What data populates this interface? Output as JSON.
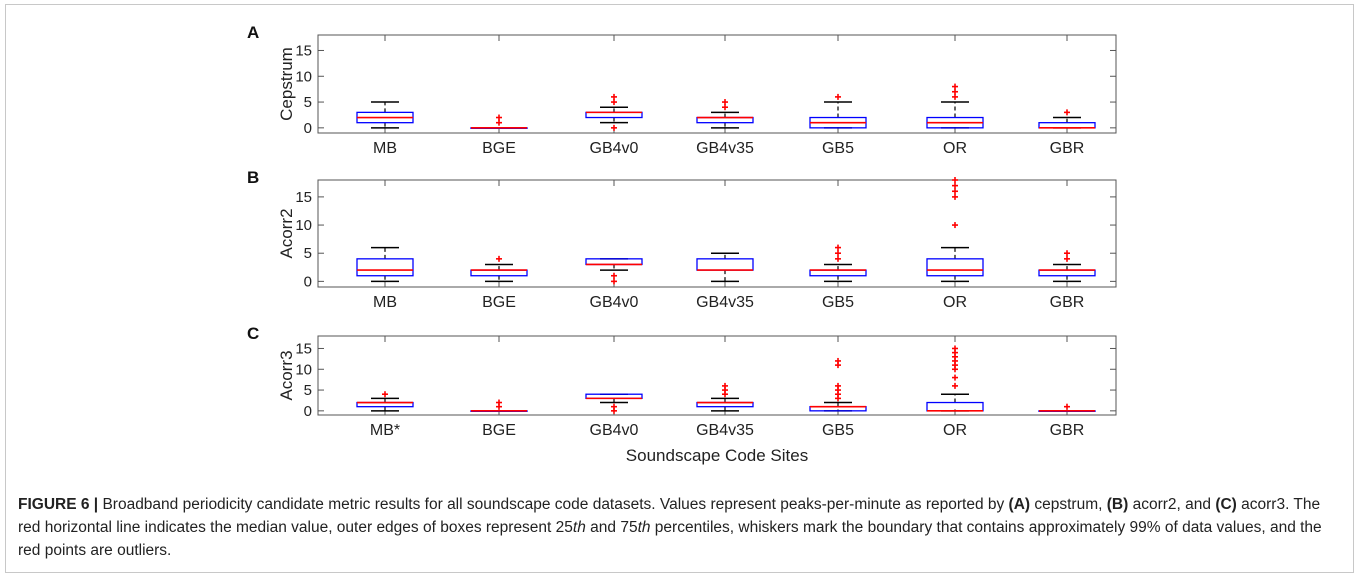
{
  "figure": {
    "xlabel": "Soundscape Code Sites"
  },
  "caption": {
    "label": "FIGURE 6 |",
    "segments": [
      {
        "t": " Broadband periodicity candidate metric results for all soundscape code datasets. Values represent peaks-per-minute as reported by ",
        "s": "n"
      },
      {
        "t": "(A)",
        "s": "b"
      },
      {
        "t": " cepstrum, ",
        "s": "n"
      },
      {
        "t": "(B)",
        "s": "b"
      },
      {
        "t": " acorr2, and ",
        "s": "n"
      },
      {
        "t": "(C)",
        "s": "b"
      },
      {
        "t": " acorr3. The red horizontal line indicates the median value, outer edges of boxes represent 25",
        "s": "n"
      },
      {
        "t": "th",
        "s": "i"
      },
      {
        "t": " and 75",
        "s": "n"
      },
      {
        "t": "th",
        "s": "i"
      },
      {
        "t": " percentiles, whiskers mark the boundary that contains approximately 99% of data values, and the red points are outliers.",
        "s": "n"
      }
    ]
  },
  "colors": {
    "box": "#0000ff",
    "median": "#ff0000",
    "whisker": "#000000",
    "outlier": "#ff0000",
    "axis": "#555555"
  },
  "chart_data": [
    {
      "type": "box",
      "panel": "A",
      "ylabel": "Cepstrum",
      "ylim": [
        -1,
        18
      ],
      "yticks": [
        0,
        5,
        10,
        15
      ],
      "categories": [
        "MB",
        "BGE",
        "GB4v0",
        "GB4v35",
        "GB5",
        "OR",
        "GBR"
      ],
      "boxes": [
        {
          "min": 0,
          "q1": 1,
          "median": 2,
          "q3": 3,
          "max": 5,
          "outliers": []
        },
        {
          "min": 0,
          "q1": 0,
          "median": 0,
          "q3": 0,
          "max": 0,
          "outliers": [
            1,
            2
          ]
        },
        {
          "min": 1,
          "q1": 2,
          "median": 3,
          "q3": 3,
          "max": 4,
          "outliers": [
            0,
            5,
            6
          ]
        },
        {
          "min": 0,
          "q1": 1,
          "median": 2,
          "q3": 2,
          "max": 3,
          "outliers": [
            4,
            5
          ]
        },
        {
          "min": 0,
          "q1": 0,
          "median": 1,
          "q3": 2,
          "max": 5,
          "outliers": [
            6
          ]
        },
        {
          "min": 0,
          "q1": 0,
          "median": 1,
          "q3": 2,
          "max": 5,
          "outliers": [
            6,
            7,
            8
          ]
        },
        {
          "min": 0,
          "q1": 0,
          "median": 0,
          "q3": 1,
          "max": 2,
          "outliers": [
            3
          ]
        }
      ]
    },
    {
      "type": "box",
      "panel": "B",
      "ylabel": "Acorr2",
      "ylim": [
        -1,
        18
      ],
      "yticks": [
        0,
        5,
        10,
        15
      ],
      "categories": [
        "MB",
        "BGE",
        "GB4v0",
        "GB4v35",
        "GB5",
        "OR",
        "GBR"
      ],
      "boxes": [
        {
          "min": 0,
          "q1": 1,
          "median": 2,
          "q3": 4,
          "max": 6,
          "outliers": []
        },
        {
          "min": 0,
          "q1": 1,
          "median": 2,
          "q3": 2,
          "max": 3,
          "outliers": [
            4
          ]
        },
        {
          "min": 2,
          "q1": 3,
          "median": 3,
          "q3": 4,
          "max": 4,
          "outliers": [
            0,
            1
          ]
        },
        {
          "min": 0,
          "q1": 2,
          "median": 2,
          "q3": 4,
          "max": 5,
          "outliers": []
        },
        {
          "min": 0,
          "q1": 1,
          "median": 2,
          "q3": 2,
          "max": 3,
          "outliers": [
            4,
            5,
            6
          ]
        },
        {
          "min": 0,
          "q1": 1,
          "median": 2,
          "q3": 4,
          "max": 6,
          "outliers": [
            10,
            15,
            16,
            17,
            18
          ]
        },
        {
          "min": 0,
          "q1": 1,
          "median": 2,
          "q3": 2,
          "max": 3,
          "outliers": [
            4,
            5
          ]
        }
      ]
    },
    {
      "type": "box",
      "panel": "C",
      "ylabel": "Acorr3",
      "ylim": [
        -1,
        18
      ],
      "yticks": [
        0,
        5,
        10,
        15
      ],
      "categories": [
        "MB*",
        "BGE",
        "GB4v0",
        "GB4v35",
        "GB5",
        "OR",
        "GBR"
      ],
      "boxes": [
        {
          "min": 0,
          "q1": 1,
          "median": 2,
          "q3": 2,
          "max": 3,
          "outliers": [
            4
          ]
        },
        {
          "min": 0,
          "q1": 0,
          "median": 0,
          "q3": 0,
          "max": 0,
          "outliers": [
            1,
            2
          ]
        },
        {
          "min": 2,
          "q1": 3,
          "median": 3,
          "q3": 4,
          "max": 4,
          "outliers": [
            0,
            1
          ]
        },
        {
          "min": 0,
          "q1": 1,
          "median": 2,
          "q3": 2,
          "max": 3,
          "outliers": [
            4,
            5,
            6
          ]
        },
        {
          "min": 0,
          "q1": 0,
          "median": 1,
          "q3": 1,
          "max": 2,
          "outliers": [
            3,
            4,
            5,
            6,
            11,
            12
          ]
        },
        {
          "min": 0,
          "q1": 0,
          "median": 0,
          "q3": 2,
          "max": 4,
          "outliers": [
            6,
            8,
            10,
            11,
            12,
            13,
            14,
            15
          ]
        },
        {
          "min": 0,
          "q1": 0,
          "median": 0,
          "q3": 0,
          "max": 0,
          "outliers": [
            1
          ]
        }
      ]
    }
  ]
}
